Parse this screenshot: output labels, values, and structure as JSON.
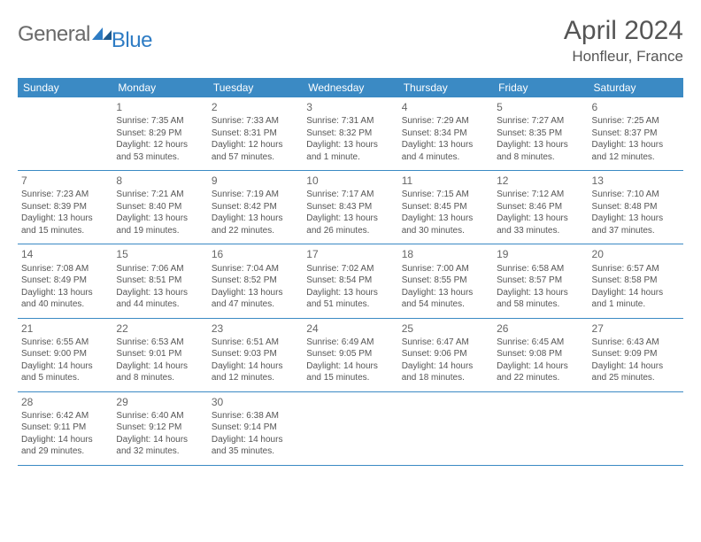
{
  "logo": {
    "general": "General",
    "blue": "Blue"
  },
  "title": "April 2024",
  "location": "Honfleur, France",
  "colors": {
    "header_bg": "#3b8ac4",
    "header_text": "#ffffff",
    "border": "#3b8ac4",
    "text": "#555555",
    "logo_gray": "#6a6a6a",
    "logo_blue": "#2e7cc4",
    "background": "#ffffff"
  },
  "day_headers": [
    "Sunday",
    "Monday",
    "Tuesday",
    "Wednesday",
    "Thursday",
    "Friday",
    "Saturday"
  ],
  "weeks": [
    [
      null,
      {
        "n": "1",
        "sr": "Sunrise: 7:35 AM",
        "ss": "Sunset: 8:29 PM",
        "dl": "Daylight: 12 hours and 53 minutes."
      },
      {
        "n": "2",
        "sr": "Sunrise: 7:33 AM",
        "ss": "Sunset: 8:31 PM",
        "dl": "Daylight: 12 hours and 57 minutes."
      },
      {
        "n": "3",
        "sr": "Sunrise: 7:31 AM",
        "ss": "Sunset: 8:32 PM",
        "dl": "Daylight: 13 hours and 1 minute."
      },
      {
        "n": "4",
        "sr": "Sunrise: 7:29 AM",
        "ss": "Sunset: 8:34 PM",
        "dl": "Daylight: 13 hours and 4 minutes."
      },
      {
        "n": "5",
        "sr": "Sunrise: 7:27 AM",
        "ss": "Sunset: 8:35 PM",
        "dl": "Daylight: 13 hours and 8 minutes."
      },
      {
        "n": "6",
        "sr": "Sunrise: 7:25 AM",
        "ss": "Sunset: 8:37 PM",
        "dl": "Daylight: 13 hours and 12 minutes."
      }
    ],
    [
      {
        "n": "7",
        "sr": "Sunrise: 7:23 AM",
        "ss": "Sunset: 8:39 PM",
        "dl": "Daylight: 13 hours and 15 minutes."
      },
      {
        "n": "8",
        "sr": "Sunrise: 7:21 AM",
        "ss": "Sunset: 8:40 PM",
        "dl": "Daylight: 13 hours and 19 minutes."
      },
      {
        "n": "9",
        "sr": "Sunrise: 7:19 AM",
        "ss": "Sunset: 8:42 PM",
        "dl": "Daylight: 13 hours and 22 minutes."
      },
      {
        "n": "10",
        "sr": "Sunrise: 7:17 AM",
        "ss": "Sunset: 8:43 PM",
        "dl": "Daylight: 13 hours and 26 minutes."
      },
      {
        "n": "11",
        "sr": "Sunrise: 7:15 AM",
        "ss": "Sunset: 8:45 PM",
        "dl": "Daylight: 13 hours and 30 minutes."
      },
      {
        "n": "12",
        "sr": "Sunrise: 7:12 AM",
        "ss": "Sunset: 8:46 PM",
        "dl": "Daylight: 13 hours and 33 minutes."
      },
      {
        "n": "13",
        "sr": "Sunrise: 7:10 AM",
        "ss": "Sunset: 8:48 PM",
        "dl": "Daylight: 13 hours and 37 minutes."
      }
    ],
    [
      {
        "n": "14",
        "sr": "Sunrise: 7:08 AM",
        "ss": "Sunset: 8:49 PM",
        "dl": "Daylight: 13 hours and 40 minutes."
      },
      {
        "n": "15",
        "sr": "Sunrise: 7:06 AM",
        "ss": "Sunset: 8:51 PM",
        "dl": "Daylight: 13 hours and 44 minutes."
      },
      {
        "n": "16",
        "sr": "Sunrise: 7:04 AM",
        "ss": "Sunset: 8:52 PM",
        "dl": "Daylight: 13 hours and 47 minutes."
      },
      {
        "n": "17",
        "sr": "Sunrise: 7:02 AM",
        "ss": "Sunset: 8:54 PM",
        "dl": "Daylight: 13 hours and 51 minutes."
      },
      {
        "n": "18",
        "sr": "Sunrise: 7:00 AM",
        "ss": "Sunset: 8:55 PM",
        "dl": "Daylight: 13 hours and 54 minutes."
      },
      {
        "n": "19",
        "sr": "Sunrise: 6:58 AM",
        "ss": "Sunset: 8:57 PM",
        "dl": "Daylight: 13 hours and 58 minutes."
      },
      {
        "n": "20",
        "sr": "Sunrise: 6:57 AM",
        "ss": "Sunset: 8:58 PM",
        "dl": "Daylight: 14 hours and 1 minute."
      }
    ],
    [
      {
        "n": "21",
        "sr": "Sunrise: 6:55 AM",
        "ss": "Sunset: 9:00 PM",
        "dl": "Daylight: 14 hours and 5 minutes."
      },
      {
        "n": "22",
        "sr": "Sunrise: 6:53 AM",
        "ss": "Sunset: 9:01 PM",
        "dl": "Daylight: 14 hours and 8 minutes."
      },
      {
        "n": "23",
        "sr": "Sunrise: 6:51 AM",
        "ss": "Sunset: 9:03 PM",
        "dl": "Daylight: 14 hours and 12 minutes."
      },
      {
        "n": "24",
        "sr": "Sunrise: 6:49 AM",
        "ss": "Sunset: 9:05 PM",
        "dl": "Daylight: 14 hours and 15 minutes."
      },
      {
        "n": "25",
        "sr": "Sunrise: 6:47 AM",
        "ss": "Sunset: 9:06 PM",
        "dl": "Daylight: 14 hours and 18 minutes."
      },
      {
        "n": "26",
        "sr": "Sunrise: 6:45 AM",
        "ss": "Sunset: 9:08 PM",
        "dl": "Daylight: 14 hours and 22 minutes."
      },
      {
        "n": "27",
        "sr": "Sunrise: 6:43 AM",
        "ss": "Sunset: 9:09 PM",
        "dl": "Daylight: 14 hours and 25 minutes."
      }
    ],
    [
      {
        "n": "28",
        "sr": "Sunrise: 6:42 AM",
        "ss": "Sunset: 9:11 PM",
        "dl": "Daylight: 14 hours and 29 minutes."
      },
      {
        "n": "29",
        "sr": "Sunrise: 6:40 AM",
        "ss": "Sunset: 9:12 PM",
        "dl": "Daylight: 14 hours and 32 minutes."
      },
      {
        "n": "30",
        "sr": "Sunrise: 6:38 AM",
        "ss": "Sunset: 9:14 PM",
        "dl": "Daylight: 14 hours and 35 minutes."
      },
      null,
      null,
      null,
      null
    ]
  ]
}
